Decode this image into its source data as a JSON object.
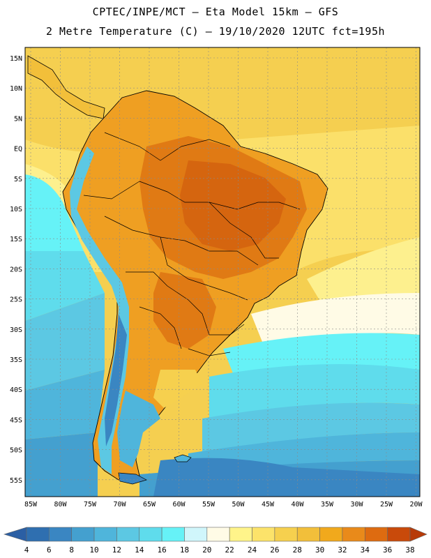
{
  "header": {
    "line1": "CPTEC/INPE/MCT –  Eta Model 15km – GFS",
    "line2": "2 Metre Temperature (C) – 19/10/2020 12UTC fct=195h"
  },
  "map": {
    "lat_labels": [
      "15N",
      "10N",
      "5N",
      "EQ",
      "5S",
      "10S",
      "15S",
      "20S",
      "25S",
      "30S",
      "35S",
      "40S",
      "45S",
      "50S",
      "55S"
    ],
    "lon_labels": [
      "85W",
      "80W",
      "75W",
      "70W",
      "65W",
      "60W",
      "55W",
      "50W",
      "45W",
      "40W",
      "35W",
      "30W",
      "25W",
      "20W"
    ]
  },
  "colorbar": {
    "ticks": [
      "4",
      "6",
      "8",
      "10",
      "12",
      "14",
      "16",
      "18",
      "20",
      "22",
      "24",
      "26",
      "28",
      "30",
      "32",
      "34",
      "36",
      "38"
    ],
    "colors": [
      "#2f6fb0",
      "#3a86c2",
      "#44a0cf",
      "#4fb5db",
      "#5cc8e3",
      "#5fdcec",
      "#66f2f7",
      "#d0f6fb",
      "#fffbe6",
      "#fff48a",
      "#fce36a",
      "#f6d04e",
      "#f2bf3a",
      "#f1a91c",
      "#e98a1a",
      "#de6b10",
      "#c94a0a"
    ],
    "under_color": "#2b5fa4",
    "over_color": "#b73a08"
  },
  "colors": {
    "hot": "#e07a14",
    "very_hot": "#d5650f",
    "warm": "#f1a91c",
    "mild": "#f6d04e",
    "ocean_warm": "#f6cf52",
    "ocean_cool": "#5fdcec",
    "ocean_cold": "#2f6fb0",
    "andes_cold": "#4fb5db"
  }
}
